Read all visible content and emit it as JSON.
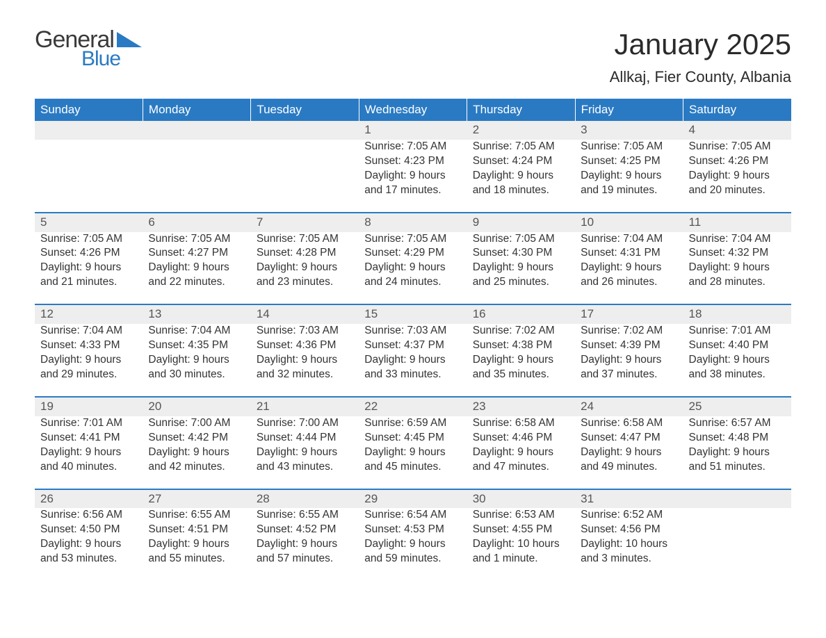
{
  "brand": {
    "name_part1": "General",
    "name_part2": "Blue"
  },
  "title": "January 2025",
  "location": "Allkaj, Fier County, Albania",
  "colors": {
    "header_bg": "#2a7ac3",
    "header_text": "#ffffff",
    "daynum_bg": "#eeeeee",
    "row_border": "#2a7ac3",
    "body_text": "#333333",
    "logo_blue": "#2a7ac3"
  },
  "day_headers": [
    "Sunday",
    "Monday",
    "Tuesday",
    "Wednesday",
    "Thursday",
    "Friday",
    "Saturday"
  ],
  "weeks": [
    {
      "days": [
        null,
        null,
        null,
        {
          "n": "1",
          "sunrise": "Sunrise: 7:05 AM",
          "sunset": "Sunset: 4:23 PM",
          "dl1": "Daylight: 9 hours",
          "dl2": "and 17 minutes."
        },
        {
          "n": "2",
          "sunrise": "Sunrise: 7:05 AM",
          "sunset": "Sunset: 4:24 PM",
          "dl1": "Daylight: 9 hours",
          "dl2": "and 18 minutes."
        },
        {
          "n": "3",
          "sunrise": "Sunrise: 7:05 AM",
          "sunset": "Sunset: 4:25 PM",
          "dl1": "Daylight: 9 hours",
          "dl2": "and 19 minutes."
        },
        {
          "n": "4",
          "sunrise": "Sunrise: 7:05 AM",
          "sunset": "Sunset: 4:26 PM",
          "dl1": "Daylight: 9 hours",
          "dl2": "and 20 minutes."
        }
      ]
    },
    {
      "days": [
        {
          "n": "5",
          "sunrise": "Sunrise: 7:05 AM",
          "sunset": "Sunset: 4:26 PM",
          "dl1": "Daylight: 9 hours",
          "dl2": "and 21 minutes."
        },
        {
          "n": "6",
          "sunrise": "Sunrise: 7:05 AM",
          "sunset": "Sunset: 4:27 PM",
          "dl1": "Daylight: 9 hours",
          "dl2": "and 22 minutes."
        },
        {
          "n": "7",
          "sunrise": "Sunrise: 7:05 AM",
          "sunset": "Sunset: 4:28 PM",
          "dl1": "Daylight: 9 hours",
          "dl2": "and 23 minutes."
        },
        {
          "n": "8",
          "sunrise": "Sunrise: 7:05 AM",
          "sunset": "Sunset: 4:29 PM",
          "dl1": "Daylight: 9 hours",
          "dl2": "and 24 minutes."
        },
        {
          "n": "9",
          "sunrise": "Sunrise: 7:05 AM",
          "sunset": "Sunset: 4:30 PM",
          "dl1": "Daylight: 9 hours",
          "dl2": "and 25 minutes."
        },
        {
          "n": "10",
          "sunrise": "Sunrise: 7:04 AM",
          "sunset": "Sunset: 4:31 PM",
          "dl1": "Daylight: 9 hours",
          "dl2": "and 26 minutes."
        },
        {
          "n": "11",
          "sunrise": "Sunrise: 7:04 AM",
          "sunset": "Sunset: 4:32 PM",
          "dl1": "Daylight: 9 hours",
          "dl2": "and 28 minutes."
        }
      ]
    },
    {
      "days": [
        {
          "n": "12",
          "sunrise": "Sunrise: 7:04 AM",
          "sunset": "Sunset: 4:33 PM",
          "dl1": "Daylight: 9 hours",
          "dl2": "and 29 minutes."
        },
        {
          "n": "13",
          "sunrise": "Sunrise: 7:04 AM",
          "sunset": "Sunset: 4:35 PM",
          "dl1": "Daylight: 9 hours",
          "dl2": "and 30 minutes."
        },
        {
          "n": "14",
          "sunrise": "Sunrise: 7:03 AM",
          "sunset": "Sunset: 4:36 PM",
          "dl1": "Daylight: 9 hours",
          "dl2": "and 32 minutes."
        },
        {
          "n": "15",
          "sunrise": "Sunrise: 7:03 AM",
          "sunset": "Sunset: 4:37 PM",
          "dl1": "Daylight: 9 hours",
          "dl2": "and 33 minutes."
        },
        {
          "n": "16",
          "sunrise": "Sunrise: 7:02 AM",
          "sunset": "Sunset: 4:38 PM",
          "dl1": "Daylight: 9 hours",
          "dl2": "and 35 minutes."
        },
        {
          "n": "17",
          "sunrise": "Sunrise: 7:02 AM",
          "sunset": "Sunset: 4:39 PM",
          "dl1": "Daylight: 9 hours",
          "dl2": "and 37 minutes."
        },
        {
          "n": "18",
          "sunrise": "Sunrise: 7:01 AM",
          "sunset": "Sunset: 4:40 PM",
          "dl1": "Daylight: 9 hours",
          "dl2": "and 38 minutes."
        }
      ]
    },
    {
      "days": [
        {
          "n": "19",
          "sunrise": "Sunrise: 7:01 AM",
          "sunset": "Sunset: 4:41 PM",
          "dl1": "Daylight: 9 hours",
          "dl2": "and 40 minutes."
        },
        {
          "n": "20",
          "sunrise": "Sunrise: 7:00 AM",
          "sunset": "Sunset: 4:42 PM",
          "dl1": "Daylight: 9 hours",
          "dl2": "and 42 minutes."
        },
        {
          "n": "21",
          "sunrise": "Sunrise: 7:00 AM",
          "sunset": "Sunset: 4:44 PM",
          "dl1": "Daylight: 9 hours",
          "dl2": "and 43 minutes."
        },
        {
          "n": "22",
          "sunrise": "Sunrise: 6:59 AM",
          "sunset": "Sunset: 4:45 PM",
          "dl1": "Daylight: 9 hours",
          "dl2": "and 45 minutes."
        },
        {
          "n": "23",
          "sunrise": "Sunrise: 6:58 AM",
          "sunset": "Sunset: 4:46 PM",
          "dl1": "Daylight: 9 hours",
          "dl2": "and 47 minutes."
        },
        {
          "n": "24",
          "sunrise": "Sunrise: 6:58 AM",
          "sunset": "Sunset: 4:47 PM",
          "dl1": "Daylight: 9 hours",
          "dl2": "and 49 minutes."
        },
        {
          "n": "25",
          "sunrise": "Sunrise: 6:57 AM",
          "sunset": "Sunset: 4:48 PM",
          "dl1": "Daylight: 9 hours",
          "dl2": "and 51 minutes."
        }
      ]
    },
    {
      "days": [
        {
          "n": "26",
          "sunrise": "Sunrise: 6:56 AM",
          "sunset": "Sunset: 4:50 PM",
          "dl1": "Daylight: 9 hours",
          "dl2": "and 53 minutes."
        },
        {
          "n": "27",
          "sunrise": "Sunrise: 6:55 AM",
          "sunset": "Sunset: 4:51 PM",
          "dl1": "Daylight: 9 hours",
          "dl2": "and 55 minutes."
        },
        {
          "n": "28",
          "sunrise": "Sunrise: 6:55 AM",
          "sunset": "Sunset: 4:52 PM",
          "dl1": "Daylight: 9 hours",
          "dl2": "and 57 minutes."
        },
        {
          "n": "29",
          "sunrise": "Sunrise: 6:54 AM",
          "sunset": "Sunset: 4:53 PM",
          "dl1": "Daylight: 9 hours",
          "dl2": "and 59 minutes."
        },
        {
          "n": "30",
          "sunrise": "Sunrise: 6:53 AM",
          "sunset": "Sunset: 4:55 PM",
          "dl1": "Daylight: 10 hours",
          "dl2": "and 1 minute."
        },
        {
          "n": "31",
          "sunrise": "Sunrise: 6:52 AM",
          "sunset": "Sunset: 4:56 PM",
          "dl1": "Daylight: 10 hours",
          "dl2": "and 3 minutes."
        },
        null
      ]
    }
  ]
}
